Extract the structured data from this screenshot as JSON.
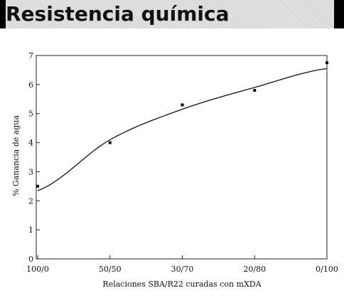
{
  "header": {
    "title": "Resistencia química"
  },
  "chart_data": {
    "type": "scatter",
    "title": "",
    "xlabel": "Relaciones SBA/R22 curadas con mXDA",
    "ylabel": "% Ganancia de agua",
    "categories": [
      "100/0",
      "50/50",
      "30/70",
      "20/80",
      "0/100"
    ],
    "ylim": [
      0,
      7
    ],
    "yticks": [
      0,
      1,
      2,
      3,
      4,
      5,
      6,
      7
    ],
    "series": [
      {
        "values": [
          2.5,
          4.0,
          5.3,
          5.8,
          6.75
        ]
      }
    ],
    "fit_curve": {
      "values": [
        2.35,
        4.1,
        5.15,
        5.9,
        6.55
      ]
    },
    "grid": false,
    "legend": "none"
  }
}
